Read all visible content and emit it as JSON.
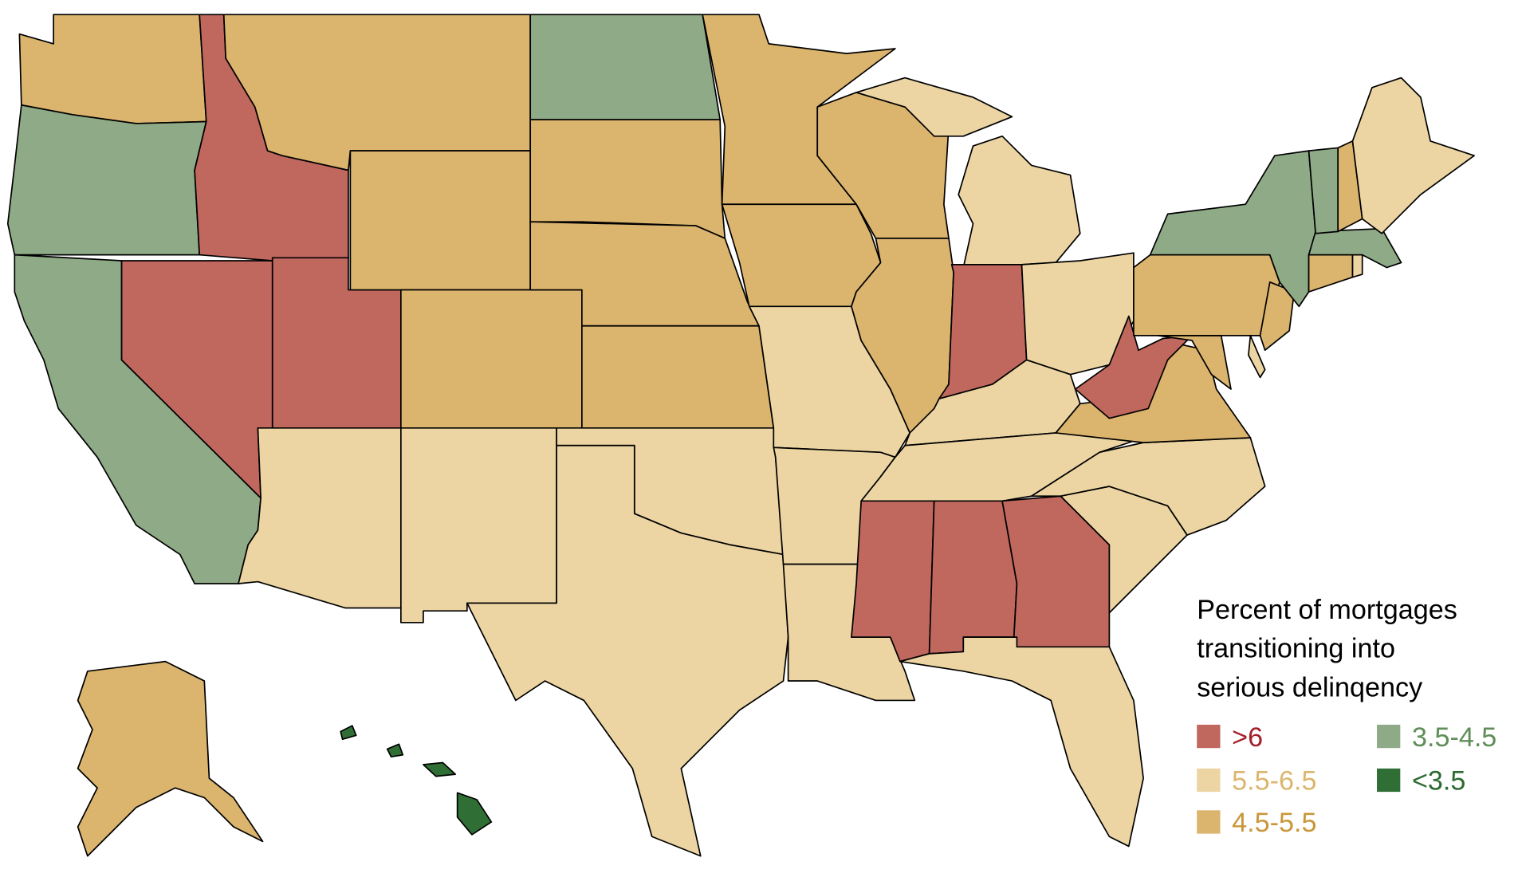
{
  "legend": {
    "title": [
      "Percent of mortgages",
      "transitioning into",
      "serious delinqency"
    ],
    "items": [
      {
        "label": ">6",
        "color": "#c0675e",
        "text_color": "#a3202b"
      },
      {
        "label": "5.5-6.5",
        "color": "#ecd5a3",
        "text_color": "#dcb66f"
      },
      {
        "label": "4.5-5.5",
        "color": "#dbb46e",
        "text_color": "#c9973a"
      },
      {
        "label": "3.5-4.5",
        "color": "#8faa86",
        "text_color": "#5f8e58"
      },
      {
        "label": "<3.5",
        "color": "#2f6f35",
        "text_color": "#2b6b2f"
      }
    ]
  }
}
